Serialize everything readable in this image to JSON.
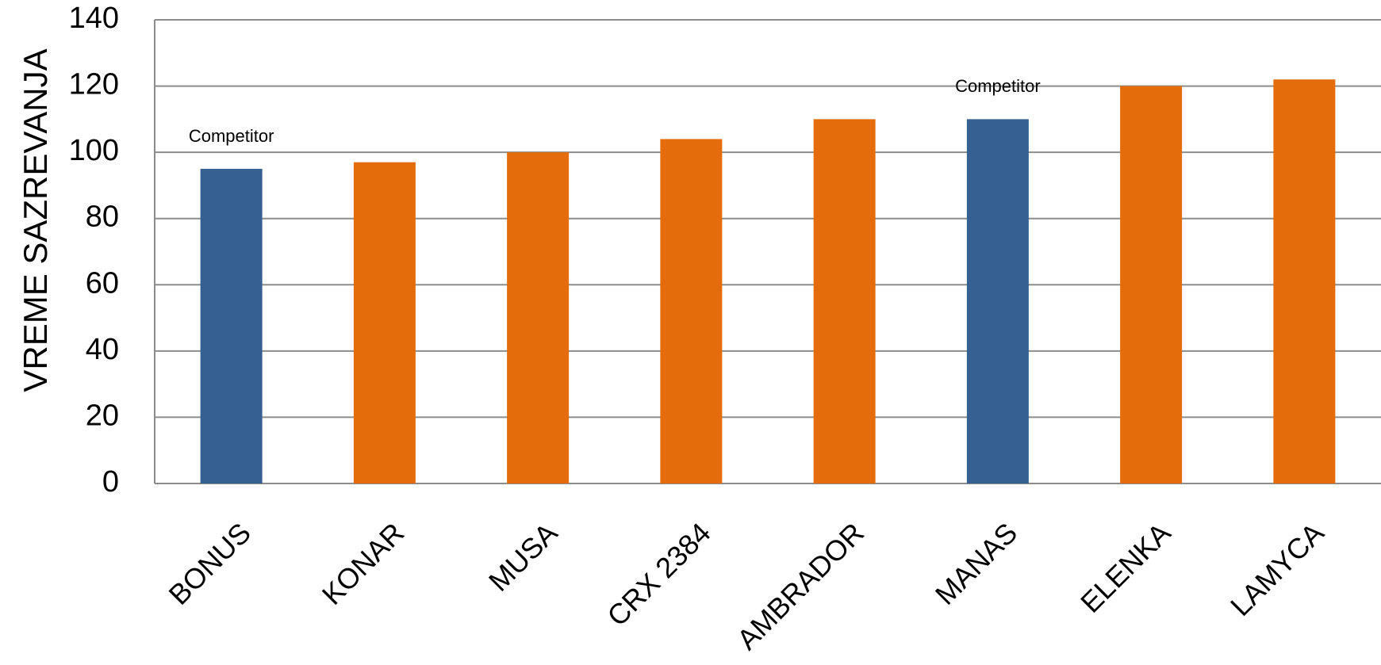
{
  "chart_data": {
    "type": "bar",
    "title": "",
    "xlabel": "",
    "ylabel": "VREME SAZREVANJA",
    "ylim": [
      0,
      140
    ],
    "yticks": [
      0,
      20,
      40,
      60,
      80,
      100,
      120,
      140
    ],
    "grid": true,
    "legend": "none",
    "categories": [
      "BONUS",
      "KONAR",
      "MUSA",
      "CRX 2384",
      "AMBRADOR",
      "MANAS",
      "ELENKA",
      "LAMYCA"
    ],
    "values": [
      95,
      97,
      100,
      104,
      110,
      110,
      120,
      122
    ],
    "bar_colors": [
      "#366092",
      "#E46C0A",
      "#E46C0A",
      "#E46C0A",
      "#E46C0A",
      "#366092",
      "#E46C0A",
      "#E46C0A"
    ],
    "annotations": [
      {
        "category": "BONUS",
        "text": "Competitor"
      },
      {
        "category": "MANAS",
        "text": "Competitor"
      }
    ]
  },
  "colors": {
    "competitor": "#366092",
    "own": "#E46C0A",
    "gridline": "#8C8C8C"
  }
}
